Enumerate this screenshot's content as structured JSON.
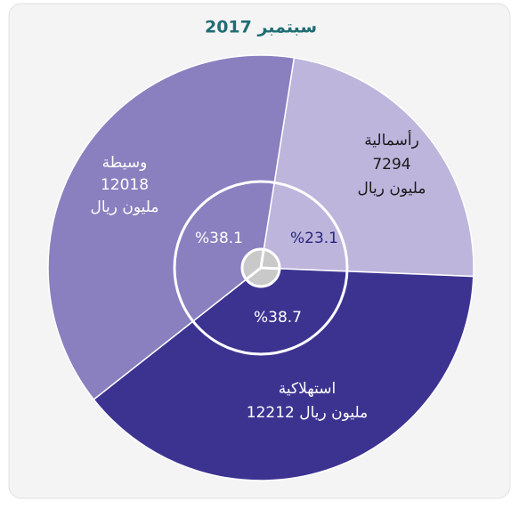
{
  "chart_data": {
    "type": "pie",
    "title": "سبتمبر 2017",
    "categories": [
      "رأسمالية",
      "استهلاكية",
      "وسيطة"
    ],
    "values": [
      7294,
      12212,
      12018
    ],
    "value_labels": [
      "7294",
      "12212 مليون ريال",
      "12018"
    ],
    "unit": "مليون ريال",
    "percentages": [
      23.1,
      38.7,
      38.1
    ],
    "percentage_labels": [
      "%23.1",
      "%38.7",
      "%38.1"
    ],
    "colors": [
      "#bdb5dc",
      "#3c3391",
      "#8a80bf"
    ]
  }
}
